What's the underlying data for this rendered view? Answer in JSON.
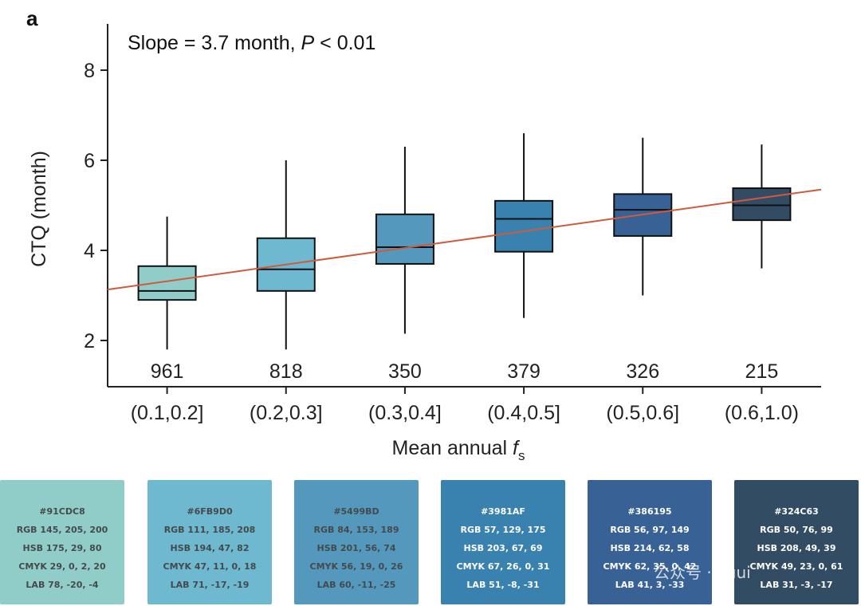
{
  "panel_label": "a",
  "annotation": {
    "prefix": "Slope = 3.7 month, ",
    "p_symbol": "P",
    "suffix": " < 0.01"
  },
  "chart_data": {
    "type": "box",
    "ylabel": "CTQ (month)",
    "xlabel_main": "Mean annual ",
    "xlabel_italic": "f",
    "xlabel_sub": "s",
    "ylim": [
      1.0,
      9.1
    ],
    "yticks": [
      2,
      4,
      6,
      8
    ],
    "categories": [
      "(0.1,0.2]",
      "(0.2,0.3]",
      "(0.3,0.4]",
      "(0.4,0.5]",
      "(0.5,0.6]",
      "(0.6,1.0)"
    ],
    "counts": [
      "961",
      "818",
      "350",
      "379",
      "326",
      "215"
    ],
    "boxes": [
      {
        "whisker_low": 1.8,
        "q1": 2.9,
        "median": 3.1,
        "q3": 3.65,
        "whisker_high": 4.75,
        "color": "#91CDC8"
      },
      {
        "whisker_low": 1.8,
        "q1": 3.1,
        "median": 3.58,
        "q3": 4.27,
        "whisker_high": 6.0,
        "color": "#6FB9D0"
      },
      {
        "whisker_low": 2.15,
        "q1": 3.7,
        "median": 4.07,
        "q3": 4.8,
        "whisker_high": 6.3,
        "color": "#5499BD"
      },
      {
        "whisker_low": 2.5,
        "q1": 3.97,
        "median": 4.7,
        "q3": 5.1,
        "whisker_high": 6.6,
        "color": "#3981AF"
      },
      {
        "whisker_low": 3.0,
        "q1": 4.32,
        "median": 4.9,
        "q3": 5.25,
        "whisker_high": 6.5,
        "color": "#386195"
      },
      {
        "whisker_low": 3.6,
        "q1": 4.67,
        "median": 5.0,
        "q3": 5.38,
        "whisker_high": 6.35,
        "color": "#324C63"
      }
    ],
    "trend_line": {
      "x_start": 0.0,
      "y_start": 3.13,
      "x_end": 6.0,
      "y_end": 5.35,
      "color": "#D05A3C"
    },
    "grid": false,
    "legend": "none"
  },
  "swatches": [
    {
      "hex": "#91CDC8",
      "rgb": "RGB 145, 205, 200",
      "hsb": "HSB 175, 29, 80",
      "cmyk": "CMYK 29, 0, 2, 20",
      "lab": "LAB 78, -20, -4",
      "color": "#91CDC8",
      "text": "dark"
    },
    {
      "hex": "#6FB9D0",
      "rgb": "RGB 111, 185, 208",
      "hsb": "HSB 194, 47, 82",
      "cmyk": "CMYK 47, 11, 0, 18",
      "lab": "LAB 71, -17, -19",
      "color": "#6FB9D0",
      "text": "dark"
    },
    {
      "hex": "#5499BD",
      "rgb": "RGB 84, 153, 189",
      "hsb": "HSB 201, 56, 74",
      "cmyk": "CMYK 56, 19, 0, 26",
      "lab": "LAB 60, -11, -25",
      "color": "#5499BD",
      "text": "dark"
    },
    {
      "hex": "#3981AF",
      "rgb": "RGB 57, 129, 175",
      "hsb": "HSB 203, 67, 69",
      "cmyk": "CMYK 67, 26, 0, 31",
      "lab": "LAB 51, -8, -31",
      "color": "#3981AF",
      "text": "light"
    },
    {
      "hex": "#386195",
      "rgb": "RGB 56, 97, 149",
      "hsb": "HSB 214, 62, 58",
      "cmyk": "CMYK 62, 35, 0, 42",
      "lab": "LAB 41, 3, -33",
      "color": "#386195",
      "text": "light"
    },
    {
      "hex": "#324C63",
      "rgb": "RGB 50, 76, 99",
      "hsb": "HSB 208, 49, 39",
      "cmyk": "CMYK 49, 23, 0, 61",
      "lab": "LAB 31, -3, -17",
      "color": "#324C63",
      "text": "light"
    }
  ],
  "watermark": "公众号 · Puui"
}
